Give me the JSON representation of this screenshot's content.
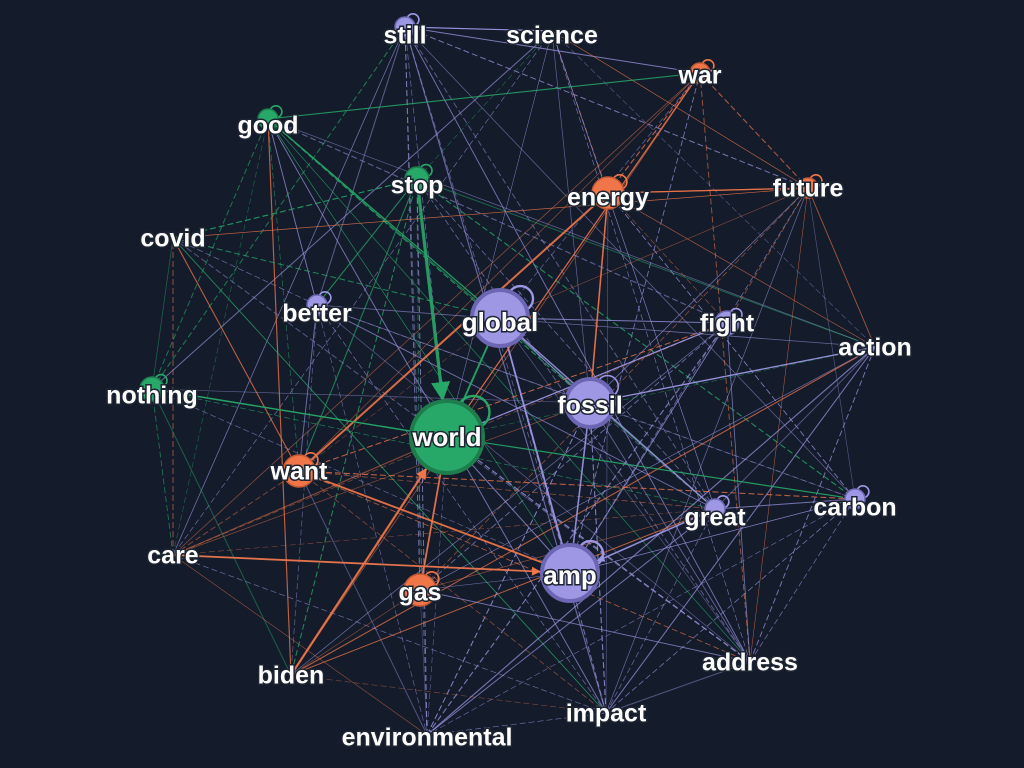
{
  "colors": {
    "background": "#141c2b",
    "green": "#27a868",
    "orange": "#f07548",
    "purple": "#9d97e4"
  },
  "nodes": [
    {
      "id": "still",
      "label": "still",
      "group": "purple",
      "weight": 1
    },
    {
      "id": "science",
      "label": "science",
      "group": "purple",
      "weight": 0
    },
    {
      "id": "war",
      "label": "war",
      "group": "orange",
      "weight": 1
    },
    {
      "id": "good",
      "label": "good",
      "group": "green",
      "weight": 1
    },
    {
      "id": "stop",
      "label": "stop",
      "group": "green",
      "weight": 2
    },
    {
      "id": "energy",
      "label": "energy",
      "group": "orange",
      "weight": 3
    },
    {
      "id": "future",
      "label": "future",
      "group": "orange",
      "weight": 1
    },
    {
      "id": "covid",
      "label": "covid",
      "group": "green",
      "weight": 0
    },
    {
      "id": "better",
      "label": "better",
      "group": "purple",
      "weight": 1
    },
    {
      "id": "global",
      "label": "global",
      "group": "purple",
      "weight": 5
    },
    {
      "id": "fight",
      "label": "fight",
      "group": "purple",
      "weight": 2
    },
    {
      "id": "action",
      "label": "action",
      "group": "purple",
      "weight": 0
    },
    {
      "id": "nothing",
      "label": "nothing",
      "group": "green",
      "weight": 2
    },
    {
      "id": "fossil",
      "label": "fossil",
      "group": "purple",
      "weight": 4
    },
    {
      "id": "world",
      "label": "world",
      "group": "green",
      "weight": 6
    },
    {
      "id": "want",
      "label": "want",
      "group": "orange",
      "weight": 3
    },
    {
      "id": "great",
      "label": "great",
      "group": "purple",
      "weight": 1
    },
    {
      "id": "carbon",
      "label": "carbon",
      "group": "purple",
      "weight": 1
    },
    {
      "id": "care",
      "label": "care",
      "group": "orange",
      "weight": 0
    },
    {
      "id": "amp",
      "label": "amp",
      "group": "purple",
      "weight": 5
    },
    {
      "id": "gas",
      "label": "gas",
      "group": "orange",
      "weight": 3
    },
    {
      "id": "biden",
      "label": "biden",
      "group": "orange",
      "weight": 0
    },
    {
      "id": "address",
      "label": "address",
      "group": "purple",
      "weight": 0
    },
    {
      "id": "impact",
      "label": "impact",
      "group": "purple",
      "weight": 0
    },
    {
      "id": "environmental",
      "label": "environmental",
      "group": "purple",
      "weight": 0
    }
  ],
  "self_loops": [
    "still",
    "war",
    "good",
    "stop",
    "energy",
    "future",
    "better",
    "global",
    "fight",
    "nothing",
    "fossil",
    "world",
    "want",
    "great",
    "carbon",
    "amp",
    "gas"
  ]
}
